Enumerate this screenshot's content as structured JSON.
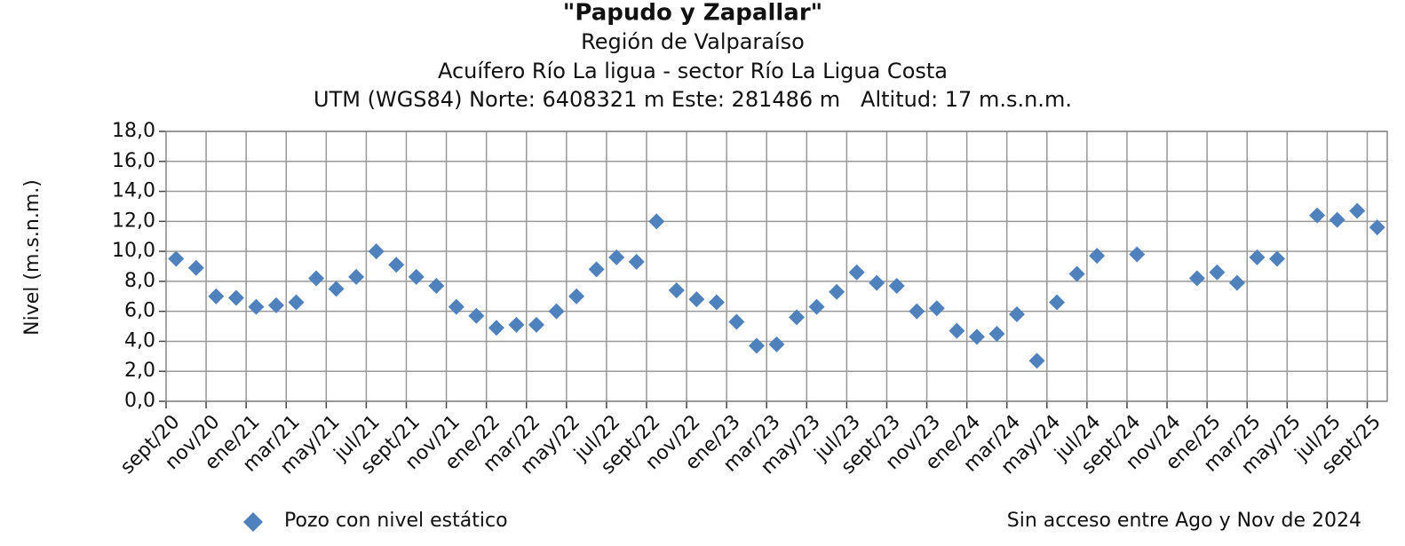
{
  "chart_data": {
    "type": "scatter",
    "title": "\"Papudo y Zapallar\"",
    "subtitles": [
      "Región de Valparaíso",
      "Acuífero Río La ligua - sector Río La Ligua Costa",
      "UTM (WGS84) Norte: 6408321 m Este: 281486 m   Altitud: 17 m.s.n.m."
    ],
    "y_label": "Nivel (m.s.n.m.)",
    "note": "Sin acceso entre Ago y Nov de 2024",
    "categories": [
      "sept/20",
      null,
      "nov/20",
      null,
      "ene/21",
      null,
      "mar/21",
      null,
      "may/21",
      null,
      "jul/21",
      null,
      "sept/21",
      null,
      "nov/21",
      null,
      "ene/22",
      null,
      "mar/22",
      null,
      "may/22",
      null,
      "jul/22",
      null,
      "sept/22",
      null,
      "nov/22",
      null,
      "ene/23",
      null,
      "mar/23",
      null,
      "may/23",
      null,
      "jul/23",
      null,
      "sept/23",
      null,
      "nov/23",
      null,
      "ene/24",
      null,
      "mar/24",
      null,
      "may/24",
      null,
      "jul/24",
      null,
      "sept/24",
      null,
      "nov/24",
      null,
      "ene/25",
      null,
      "mar/25",
      null,
      "may/25",
      null,
      "jul/25",
      null,
      "sept/25"
    ],
    "series": [
      {
        "name": "Pozo con nivel estático",
        "color": "#4f81bd",
        "values": [
          9.5,
          8.9,
          7.0,
          6.9,
          6.3,
          6.4,
          6.6,
          8.2,
          7.5,
          8.3,
          10.0,
          9.1,
          8.3,
          7.7,
          6.3,
          5.7,
          4.9,
          5.1,
          5.1,
          6.0,
          7.0,
          8.8,
          9.6,
          9.3,
          12.0,
          7.4,
          6.8,
          6.6,
          5.3,
          3.7,
          3.8,
          5.6,
          6.3,
          7.3,
          8.6,
          7.9,
          7.7,
          6.0,
          6.2,
          4.7,
          4.3,
          4.5,
          5.8,
          2.7,
          6.6,
          8.5,
          9.7,
          null,
          9.8,
          null,
          null,
          8.2,
          8.6,
          7.9,
          9.6,
          9.5,
          null,
          12.4,
          12.1,
          12.7,
          11.6
        ]
      }
    ],
    "ylim": [
      0,
      18
    ],
    "yticks": [
      {
        "value": 0,
        "label": "0,0"
      },
      {
        "value": 2,
        "label": "2,0"
      },
      {
        "value": 4,
        "label": "4,0"
      },
      {
        "value": 6,
        "label": "6,0"
      },
      {
        "value": 8,
        "label": "8,0"
      },
      {
        "value": 10,
        "label": "10,0"
      },
      {
        "value": 12,
        "label": "12,0"
      },
      {
        "value": 14,
        "label": "14,0"
      },
      {
        "value": 16,
        "label": "16,0"
      },
      {
        "value": 18,
        "label": "18,0"
      }
    ],
    "grid": true
  }
}
